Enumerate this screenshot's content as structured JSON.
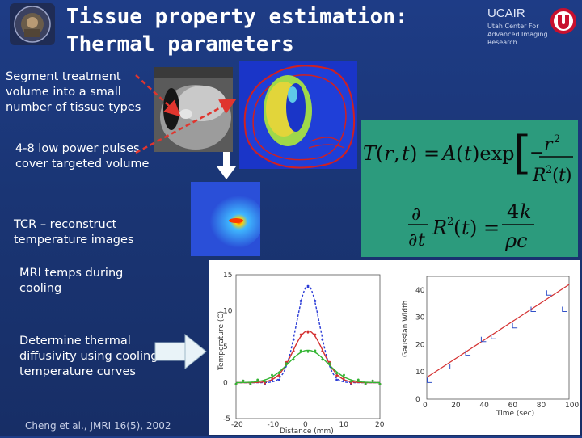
{
  "title": {
    "line1": "Tissue property estimation:",
    "line2": "Thermal parameters"
  },
  "header": {
    "org": "UCAIR",
    "org_sub": "Utah Center For Advanced Imaging Research"
  },
  "bullets": {
    "segment": "Segment treatment volume into a small number of tissue types",
    "pulses": "4-8 low power pulses cover targeted volume",
    "tcr": "TCR – reconstruct temperature images",
    "mri_temps": "MRI temps during cooling",
    "diffusivity": "Determine thermal diffusivity using cooling temperature curves"
  },
  "citation": "Cheng et al., JMRI 16(5), 2002",
  "formulas": {
    "eq1": "T(r,t) = A(t) exp[ −r² / R²(t) ]",
    "eq2": "∂/∂t R²(t) = 4k / ρc"
  },
  "colors": {
    "background": "#1b377a",
    "formula_panel": "#2c9b7d",
    "arrow_red": "#e0352e"
  },
  "chart_data": [
    {
      "type": "line",
      "title": "",
      "xlabel": "Distance (mm)",
      "ylabel": "Temperature (C)",
      "xlim": [
        -20,
        20
      ],
      "ylim": [
        -5,
        15
      ],
      "x_ticks": [
        "-20",
        "-10",
        "0",
        "10",
        "20"
      ],
      "y_ticks": [
        "-5",
        "0",
        "5",
        "10",
        "15"
      ],
      "series": [
        {
          "color": "#2a3bd6",
          "peak": 13.5,
          "width": 3.2
        },
        {
          "color": "#d43030",
          "peak": 7.2,
          "width": 4.2
        },
        {
          "color": "#33b533",
          "peak": 4.5,
          "width": 5.4
        }
      ]
    },
    {
      "type": "scatter",
      "title": "",
      "xlabel": "Time (sec)",
      "ylabel": "Gaussian Width",
      "xlim": [
        0,
        100
      ],
      "ylim": [
        0,
        45
      ],
      "x_ticks": [
        "0",
        "20",
        "40",
        "60",
        "80",
        "100"
      ],
      "y_ticks": [
        "0",
        "10",
        "20",
        "30",
        "40"
      ],
      "points": [
        [
          2,
          7
        ],
        [
          18,
          12
        ],
        [
          29,
          17
        ],
        [
          40,
          22
        ],
        [
          47,
          23
        ],
        [
          62,
          27
        ],
        [
          75,
          33
        ],
        [
          86,
          39
        ],
        [
          97,
          33
        ]
      ],
      "fit": {
        "x": [
          0,
          100
        ],
        "y": [
          8,
          42
        ],
        "color": "#d43030"
      }
    }
  ]
}
